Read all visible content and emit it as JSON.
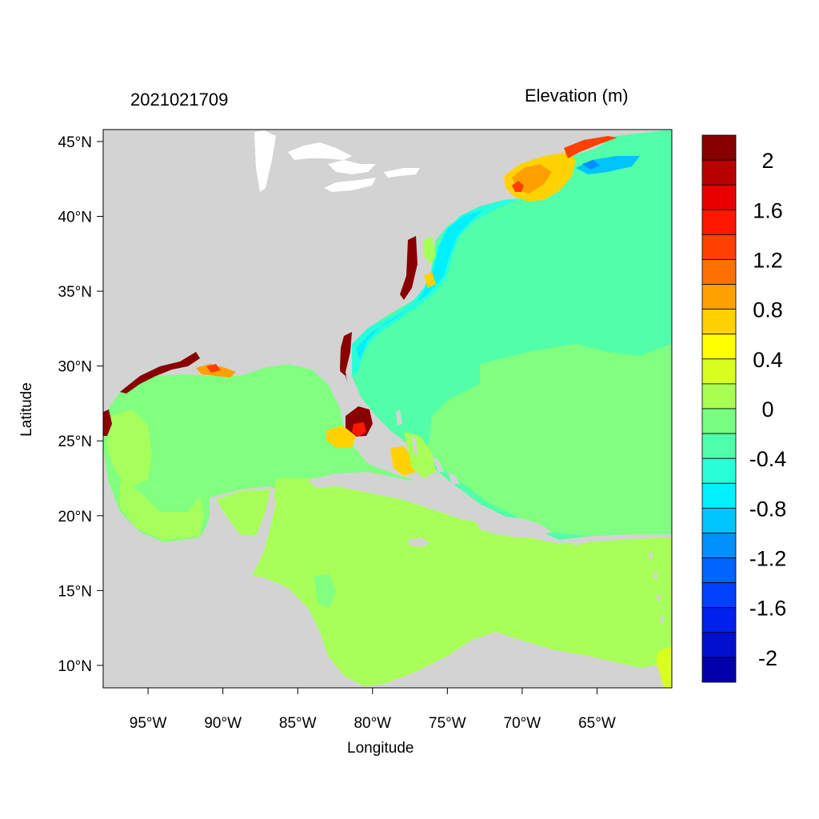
{
  "titles": {
    "timestamp": "2021021709",
    "variable": "Elevation (m)"
  },
  "axes": {
    "x_title": "Longitude",
    "y_title": "Latitude",
    "x_ticks": [
      {
        "lon": -95,
        "label": "95°W"
      },
      {
        "lon": -90,
        "label": "90°W"
      },
      {
        "lon": -85,
        "label": "85°W"
      },
      {
        "lon": -80,
        "label": "80°W"
      },
      {
        "lon": -75,
        "label": "75°W"
      },
      {
        "lon": -70,
        "label": "70°W"
      },
      {
        "lon": -65,
        "label": "65°W"
      }
    ],
    "y_ticks": [
      {
        "lat": 45,
        "label": "45°N"
      },
      {
        "lat": 40,
        "label": "40°N"
      },
      {
        "lat": 35,
        "label": "35°N"
      },
      {
        "lat": 30,
        "label": "30°N"
      },
      {
        "lat": 25,
        "label": "25°N"
      },
      {
        "lat": 20,
        "label": "20°N"
      },
      {
        "lat": 15,
        "label": "15°N"
      },
      {
        "lat": 10,
        "label": "10°N"
      }
    ],
    "lon_range": [
      -98,
      -60
    ],
    "lat_range": [
      8.5,
      45.8
    ]
  },
  "colorbar": {
    "colors": [
      "#0000aa",
      "#0010cc",
      "#0020ee",
      "#0040ff",
      "#0064ff",
      "#0090ff",
      "#00c4ff",
      "#00f0ff",
      "#28ffd8",
      "#50ffaa",
      "#78ff82",
      "#a8ff50",
      "#d8ff20",
      "#ffff00",
      "#ffd200",
      "#ffa000",
      "#ff7000",
      "#ff4000",
      "#ff1800",
      "#e80000",
      "#b80000",
      "#880000"
    ],
    "labels": [
      {
        "text": "2",
        "slot": 1
      },
      {
        "text": "1.6",
        "slot": 3
      },
      {
        "text": "1.2",
        "slot": 5
      },
      {
        "text": "0.8",
        "slot": 7
      },
      {
        "text": "0.4",
        "slot": 9
      },
      {
        "text": "0",
        "slot": 11
      },
      {
        "text": "-0.4",
        "slot": 13
      },
      {
        "text": "-0.8",
        "slot": 15
      },
      {
        "text": "-1.2",
        "slot": 17
      },
      {
        "text": "-1.6",
        "slot": 19
      },
      {
        "text": "-2",
        "slot": 21
      }
    ]
  },
  "colors": {
    "land": "#d3d3d3",
    "lakes": "#ffffff",
    "sea_gulf": "#80ff80",
    "sea_atlantic": "#52ffa8",
    "sea_caribbean": "#a8ff58"
  }
}
